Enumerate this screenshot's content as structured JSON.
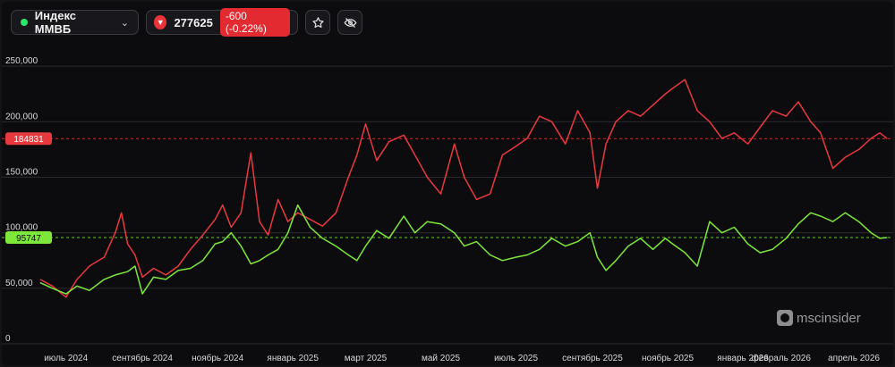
{
  "header": {
    "index_name": "Индекс ММВБ",
    "price": "277625",
    "change": "-600 (-0.22%)"
  },
  "watermark": {
    "brand_a": "msc",
    "brand_b": "insider"
  },
  "colors": {
    "red_series": "#e8393f",
    "green_series": "#7ee83a",
    "grid": "#2a2a2e",
    "background": "#0c0c0e"
  },
  "chart_data": {
    "type": "line",
    "ylim": [
      0,
      300000
    ],
    "y_ticks": [
      {
        "value": 250000,
        "label": "250,000"
      },
      {
        "value": 200000,
        "label": "200,000"
      },
      {
        "value": 150000,
        "label": "150,000"
      },
      {
        "value": 100000,
        "label": "100,000"
      },
      {
        "value": 50000,
        "label": "50,000"
      },
      {
        "value": 0,
        "label": "0"
      }
    ],
    "x_range": [
      "2024-06-08",
      "2026-04-30"
    ],
    "x_ticks": [
      {
        "date": "2024-07-01",
        "label": "июль 2024"
      },
      {
        "date": "2024-09-01",
        "label": "сентябрь 2024"
      },
      {
        "date": "2024-11-01",
        "label": "ноябрь 2024"
      },
      {
        "date": "2025-01-01",
        "label": "январь 2025"
      },
      {
        "date": "2025-03-01",
        "label": "март 2025"
      },
      {
        "date": "2025-05-01",
        "label": "май 2025"
      },
      {
        "date": "2025-07-01",
        "label": "июль 2025"
      },
      {
        "date": "2025-09-01",
        "label": "сентябрь 2025"
      },
      {
        "date": "2025-11-01",
        "label": "ноябрь 2025"
      },
      {
        "date": "2026-01-01",
        "label": "январь 2026"
      },
      {
        "date": "2026-02-01",
        "label": "февраль 2026"
      },
      {
        "date": "2026-04-01",
        "label": "апрель 2026"
      }
    ],
    "last_values": [
      {
        "value": 184831,
        "label": "184831"
      },
      {
        "value": 95747,
        "label": "95747"
      }
    ],
    "series": [
      {
        "x": [
          "2024-06-10",
          "2024-06-20",
          "2024-07-01",
          "2024-07-10",
          "2024-07-20",
          "2024-08-01",
          "2024-08-10",
          "2024-08-15",
          "2024-08-20",
          "2024-08-26",
          "2024-09-01",
          "2024-09-10",
          "2024-09-20",
          "2024-09-30",
          "2024-10-10",
          "2024-10-20",
          "2024-10-30",
          "2024-11-05",
          "2024-11-12",
          "2024-11-20",
          "2024-11-28",
          "2024-12-05",
          "2024-12-12",
          "2024-12-20",
          "2024-12-28",
          "2025-01-05",
          "2025-01-15",
          "2025-01-25",
          "2025-02-05",
          "2025-02-15",
          "2025-02-22",
          "2025-03-01",
          "2025-03-10",
          "2025-03-20",
          "2025-04-01",
          "2025-04-10",
          "2025-04-20",
          "2025-05-01",
          "2025-05-12",
          "2025-05-20",
          "2025-05-30",
          "2025-06-10",
          "2025-06-20",
          "2025-07-01",
          "2025-07-10",
          "2025-07-20",
          "2025-07-30",
          "2025-08-10",
          "2025-08-20",
          "2025-08-30",
          "2025-09-05",
          "2025-09-12",
          "2025-09-20",
          "2025-09-30",
          "2025-10-10",
          "2025-10-20",
          "2025-10-30",
          "2025-11-05",
          "2025-11-15",
          "2025-11-25",
          "2025-12-05",
          "2025-12-15",
          "2025-12-25",
          "2026-01-05",
          "2026-01-15",
          "2026-01-25",
          "2026-02-05",
          "2026-02-15",
          "2026-02-25",
          "2026-03-05",
          "2026-03-15",
          "2026-03-25",
          "2026-04-05",
          "2026-04-15",
          "2026-04-22",
          "2026-04-28"
        ],
        "values": [
          58000,
          52000,
          42000,
          58000,
          70000,
          78000,
          100000,
          118000,
          90000,
          80000,
          60000,
          68000,
          62000,
          70000,
          85000,
          98000,
          112000,
          125000,
          105000,
          118000,
          172000,
          110000,
          98000,
          130000,
          110000,
          118000,
          112000,
          106000,
          118000,
          150000,
          170000,
          198000,
          165000,
          182000,
          188000,
          170000,
          150000,
          135000,
          180000,
          150000,
          130000,
          135000,
          170000,
          178000,
          185000,
          205000,
          200000,
          180000,
          210000,
          190000,
          140000,
          180000,
          200000,
          210000,
          205000,
          215000,
          225000,
          230000,
          238000,
          210000,
          200000,
          185000,
          190000,
          180000,
          195000,
          210000,
          205000,
          218000,
          200000,
          190000,
          158000,
          168000,
          175000,
          185000,
          190000,
          184831
        ]
      },
      {
        "x": [
          "2024-06-10",
          "2024-06-20",
          "2024-07-01",
          "2024-07-10",
          "2024-07-20",
          "2024-08-01",
          "2024-08-10",
          "2024-08-20",
          "2024-08-26",
          "2024-09-01",
          "2024-09-10",
          "2024-09-20",
          "2024-09-30",
          "2024-10-10",
          "2024-10-20",
          "2024-10-30",
          "2024-11-05",
          "2024-11-12",
          "2024-11-20",
          "2024-11-28",
          "2024-12-05",
          "2024-12-12",
          "2024-12-20",
          "2024-12-28",
          "2025-01-05",
          "2025-01-15",
          "2025-01-25",
          "2025-02-05",
          "2025-02-15",
          "2025-02-22",
          "2025-03-01",
          "2025-03-10",
          "2025-03-20",
          "2025-04-01",
          "2025-04-10",
          "2025-04-20",
          "2025-05-01",
          "2025-05-12",
          "2025-05-20",
          "2025-05-30",
          "2025-06-10",
          "2025-06-20",
          "2025-07-01",
          "2025-07-10",
          "2025-07-20",
          "2025-07-30",
          "2025-08-10",
          "2025-08-20",
          "2025-08-30",
          "2025-09-05",
          "2025-09-12",
          "2025-09-20",
          "2025-09-30",
          "2025-10-10",
          "2025-10-20",
          "2025-10-30",
          "2025-11-05",
          "2025-11-15",
          "2025-11-25",
          "2025-12-05",
          "2025-12-15",
          "2025-12-25",
          "2026-01-05",
          "2026-01-15",
          "2026-01-25",
          "2026-02-05",
          "2026-02-15",
          "2026-02-25",
          "2026-03-05",
          "2026-03-15",
          "2026-03-25",
          "2026-04-05",
          "2026-04-15",
          "2026-04-22",
          "2026-04-28"
        ],
        "values": [
          55000,
          50000,
          45000,
          52000,
          48000,
          58000,
          62000,
          65000,
          70000,
          45000,
          60000,
          58000,
          66000,
          68000,
          75000,
          90000,
          92000,
          100000,
          88000,
          72000,
          75000,
          80000,
          85000,
          100000,
          125000,
          105000,
          95000,
          88000,
          80000,
          75000,
          88000,
          102000,
          95000,
          115000,
          100000,
          110000,
          108000,
          100000,
          88000,
          92000,
          80000,
          75000,
          78000,
          80000,
          85000,
          95000,
          88000,
          92000,
          100000,
          78000,
          66000,
          75000,
          88000,
          95000,
          85000,
          95000,
          90000,
          82000,
          70000,
          110000,
          100000,
          105000,
          90000,
          82000,
          85000,
          95000,
          108000,
          118000,
          115000,
          110000,
          118000,
          110000,
          100000,
          95000,
          95747
        ]
      }
    ]
  }
}
